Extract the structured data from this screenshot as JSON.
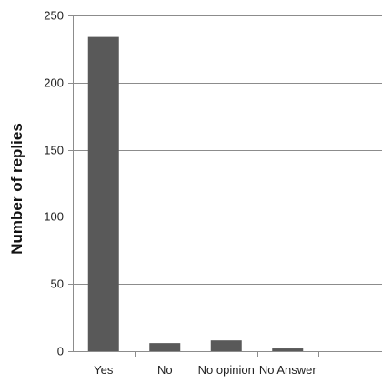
{
  "chart_data": {
    "type": "bar",
    "title": "",
    "xlabel": "",
    "ylabel": "Number of replies",
    "categories": [
      "Yes",
      "No",
      "No opinion",
      "No Answer"
    ],
    "values": [
      234,
      6,
      8,
      2
    ],
    "ylim": [
      0,
      250
    ],
    "yticks": [
      0,
      50,
      100,
      150,
      200,
      250
    ],
    "grid": true,
    "legend": "none",
    "colors": {
      "bar": "#595959",
      "grid": "#8c8c8c",
      "axis": "#8c8c8c",
      "text": "#222222"
    }
  }
}
